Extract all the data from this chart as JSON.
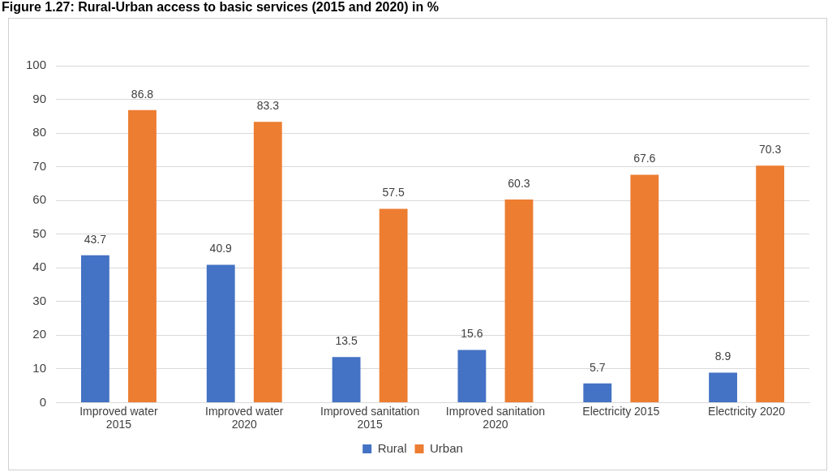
{
  "chart_data": {
    "type": "bar",
    "title": "Figure 1.27: Rural-Urban access to basic services (2015 and 2020) in %",
    "categories": [
      "Improved water 2015",
      "Improved water 2020",
      "Improved sanitation 2015",
      "Improved sanitation 2020",
      "Electricity 2015",
      "Electricity 2020"
    ],
    "series": [
      {
        "name": "Rural",
        "color": "#4472c4",
        "values": [
          43.7,
          40.9,
          13.5,
          15.6,
          5.7,
          8.9
        ]
      },
      {
        "name": "Urban",
        "color": "#ed7d31",
        "values": [
          86.8,
          83.3,
          57.5,
          60.3,
          67.6,
          70.3
        ]
      }
    ],
    "ylim": [
      0,
      100
    ],
    "yticks": [
      0,
      10,
      20,
      30,
      40,
      50,
      60,
      70,
      80,
      90,
      100
    ],
    "grid": "y",
    "legend": "bottom",
    "data_labels": true
  }
}
